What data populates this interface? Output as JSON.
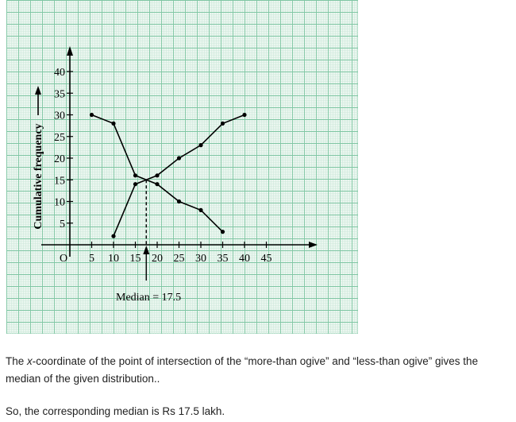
{
  "chart_data": {
    "type": "line",
    "ylabel": "Cumulative frequency",
    "origin_label": "O",
    "xlim": [
      0,
      50
    ],
    "ylim": [
      0,
      44
    ],
    "x_ticks": [
      5,
      10,
      15,
      20,
      25,
      30,
      35,
      40,
      45
    ],
    "x_tick_labels": [
      "5",
      "10",
      "15",
      "20",
      "25",
      "30",
      "35",
      "40",
      "45"
    ],
    "y_ticks": [
      5,
      10,
      15,
      20,
      25,
      30,
      35,
      40
    ],
    "y_tick_labels": [
      "5",
      "10",
      "15",
      "20",
      "25",
      "30",
      "35",
      "40"
    ],
    "series": [
      {
        "x": [
          5,
          10,
          15,
          20,
          25,
          30,
          35
        ],
        "y": [
          30,
          28,
          16,
          14,
          10,
          8,
          3
        ]
      },
      {
        "x": [
          10,
          15,
          20,
          25,
          30,
          35,
          40
        ],
        "y": [
          2,
          14,
          16,
          20,
          23,
          28,
          30
        ]
      }
    ],
    "intersection": {
      "x": 17.5,
      "y": 15
    },
    "annotation": "Median = 17.5",
    "grid": true,
    "colors": {
      "grid_major": "#7fc6a3",
      "grid_minor": "#cfe9dc",
      "background": "#eaf6ef",
      "line": "#000000"
    }
  },
  "text": {
    "p1_pre": "The ",
    "p1_x": "x",
    "p1_post": "-coordinate of the point of intersection of the “more-than ogive” and “less-than ogive” gives the median of the given distribution..",
    "p2": "So, the corresponding median is Rs 17.5 lakh."
  }
}
